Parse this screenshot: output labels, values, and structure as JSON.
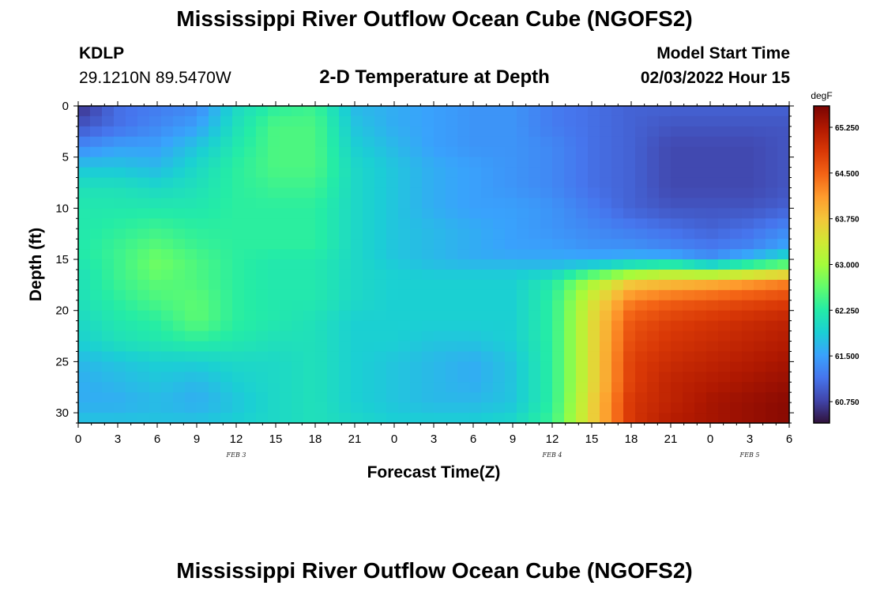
{
  "header": {
    "title": "Mississippi River Outflow Ocean Cube (NGOFS2)",
    "station_id": "KDLP",
    "station_coords": "29.1210N  89.5470W",
    "subtitle": "2-D Temperature at Depth",
    "model_start_label": "Model Start Time",
    "model_start_value": "02/03/2022 Hour 15"
  },
  "footer": {
    "title": "Mississippi River Outflow Ocean Cube (NGOFS2)"
  },
  "chart_data": {
    "type": "heatmap",
    "xlabel": "Forecast Time(Z)",
    "ylabel": "Depth (ft)",
    "x_range_hours": [
      0,
      54
    ],
    "y_range": [
      0,
      31
    ],
    "y_inverted": true,
    "x_tick_labels": [
      "0",
      "3",
      "6",
      "9",
      "12",
      "15",
      "18",
      "21",
      "0",
      "3",
      "6",
      "9",
      "12",
      "15",
      "18",
      "21",
      "0",
      "3",
      "6"
    ],
    "y_tick_labels": [
      "0",
      "5",
      "10",
      "15",
      "20",
      "25",
      "30"
    ],
    "y_ticks": [
      0,
      5,
      10,
      15,
      20,
      25,
      30
    ],
    "date_labels": [
      {
        "label": "FEB 3",
        "hour": 12
      },
      {
        "label": "FEB 4",
        "hour": 36
      },
      {
        "label": "FEB 5",
        "hour": 51
      }
    ],
    "colorbar": {
      "unit": "degF",
      "min": 60.4,
      "max": 65.6,
      "tick_values": [
        60.75,
        61.5,
        62.25,
        63.0,
        63.75,
        64.5,
        65.25
      ],
      "tick_labels": [
        "60.750",
        "61.500",
        "62.250",
        "63.000",
        "63.750",
        "64.500",
        "65.250"
      ],
      "colors": [
        "#30123b",
        "#4145ab",
        "#4675ed",
        "#39a2fc",
        "#1bcfd4",
        "#24eca6",
        "#61fc6c",
        "#a4fc3b",
        "#d1e834",
        "#f3c63a",
        "#fe9b2d",
        "#f36315",
        "#d93806",
        "#b11901",
        "#7a0403"
      ]
    },
    "depths_ft": [
      0,
      2,
      4,
      6,
      8,
      10,
      12,
      14,
      15,
      16,
      17,
      19,
      21,
      23,
      25,
      27,
      29,
      31
    ],
    "times_hours": [
      0,
      3,
      6,
      9,
      12,
      15,
      18,
      21,
      24,
      27,
      30,
      33,
      36,
      39,
      42,
      45,
      48,
      51,
      54
    ],
    "values_degF": [
      [
        60.6,
        61.1,
        61.2,
        61.3,
        62.0,
        62.3,
        62.4,
        61.7,
        61.6,
        61.5,
        61.4,
        61.4,
        61.2,
        61.1,
        61.0,
        61.0,
        61.0,
        61.0,
        61.0
      ],
      [
        60.9,
        61.1,
        61.3,
        61.5,
        62.1,
        62.5,
        62.5,
        61.8,
        61.6,
        61.5,
        61.4,
        61.4,
        61.2,
        61.1,
        61.0,
        60.9,
        60.9,
        60.9,
        60.9
      ],
      [
        61.3,
        61.5,
        61.5,
        61.8,
        62.2,
        62.5,
        62.5,
        61.9,
        61.7,
        61.5,
        61.4,
        61.4,
        61.3,
        61.1,
        61.0,
        60.8,
        60.8,
        60.8,
        60.9
      ],
      [
        61.8,
        61.8,
        61.7,
        62.0,
        62.3,
        62.5,
        62.5,
        62.0,
        61.8,
        61.6,
        61.5,
        61.4,
        61.3,
        61.1,
        61.0,
        60.8,
        60.8,
        60.8,
        60.9
      ],
      [
        62.1,
        62.1,
        62.0,
        62.1,
        62.3,
        62.4,
        62.4,
        62.0,
        61.8,
        61.6,
        61.5,
        61.4,
        61.3,
        61.1,
        61.0,
        60.8,
        60.8,
        60.8,
        60.9
      ],
      [
        62.2,
        62.2,
        62.2,
        62.2,
        62.3,
        62.3,
        62.3,
        62.0,
        61.8,
        61.6,
        61.5,
        61.5,
        61.4,
        61.2,
        61.0,
        60.9,
        60.9,
        60.9,
        61.0
      ],
      [
        62.2,
        62.3,
        62.4,
        62.3,
        62.3,
        62.3,
        62.3,
        62.0,
        61.8,
        61.7,
        61.6,
        61.5,
        61.4,
        61.3,
        61.2,
        61.1,
        61.0,
        61.1,
        61.3
      ],
      [
        62.2,
        62.4,
        62.6,
        62.4,
        62.3,
        62.3,
        62.3,
        62.0,
        61.8,
        61.7,
        61.6,
        61.5,
        61.5,
        61.4,
        61.4,
        61.3,
        61.2,
        61.3,
        61.6
      ],
      [
        62.2,
        62.4,
        62.7,
        62.5,
        62.3,
        62.2,
        62.2,
        62.0,
        61.8,
        61.7,
        61.6,
        61.6,
        61.6,
        61.6,
        61.7,
        61.7,
        61.4,
        61.8,
        62.2
      ],
      [
        62.1,
        62.4,
        62.7,
        62.5,
        62.3,
        62.2,
        62.2,
        62.0,
        61.9,
        61.8,
        61.8,
        61.8,
        61.8,
        62.1,
        62.5,
        62.8,
        62.5,
        62.8,
        63.0
      ],
      [
        62.1,
        62.4,
        62.6,
        62.5,
        62.3,
        62.2,
        62.2,
        62.0,
        61.9,
        61.9,
        61.9,
        61.9,
        62.2,
        63.0,
        63.6,
        63.7,
        63.8,
        64.0,
        64.2
      ],
      [
        62.1,
        62.3,
        62.5,
        62.6,
        62.3,
        62.2,
        62.2,
        62.0,
        61.9,
        61.9,
        61.9,
        61.9,
        62.3,
        63.4,
        64.3,
        64.5,
        64.6,
        64.7,
        64.8
      ],
      [
        62.0,
        62.2,
        62.3,
        62.6,
        62.3,
        62.2,
        62.1,
        61.9,
        61.9,
        61.9,
        61.9,
        61.9,
        62.3,
        63.5,
        64.6,
        64.8,
        64.9,
        65.0,
        65.1
      ],
      [
        61.9,
        62.1,
        62.2,
        62.3,
        62.2,
        62.1,
        62.1,
        61.9,
        61.9,
        61.8,
        61.8,
        61.9,
        62.3,
        63.5,
        64.7,
        64.9,
        65.0,
        65.1,
        65.2
      ],
      [
        61.7,
        61.8,
        61.9,
        61.9,
        62.0,
        62.0,
        62.1,
        61.9,
        61.8,
        61.7,
        61.6,
        61.8,
        62.3,
        63.5,
        64.8,
        65.0,
        65.1,
        65.2,
        65.3
      ],
      [
        61.6,
        61.7,
        61.8,
        61.7,
        61.9,
        62.0,
        62.1,
        61.9,
        61.8,
        61.7,
        61.6,
        61.8,
        62.3,
        63.5,
        64.8,
        65.1,
        65.2,
        65.3,
        65.4
      ],
      [
        61.6,
        61.6,
        61.7,
        61.6,
        61.8,
        62.0,
        62.1,
        61.9,
        61.8,
        61.7,
        61.7,
        61.8,
        62.3,
        63.6,
        64.9,
        65.1,
        65.3,
        65.4,
        65.5
      ],
      [
        61.8,
        61.8,
        61.8,
        61.8,
        61.9,
        62.0,
        62.1,
        62.0,
        61.9,
        61.9,
        61.9,
        62.0,
        62.4,
        63.6,
        64.9,
        65.2,
        65.3,
        65.4,
        65.5
      ]
    ]
  }
}
